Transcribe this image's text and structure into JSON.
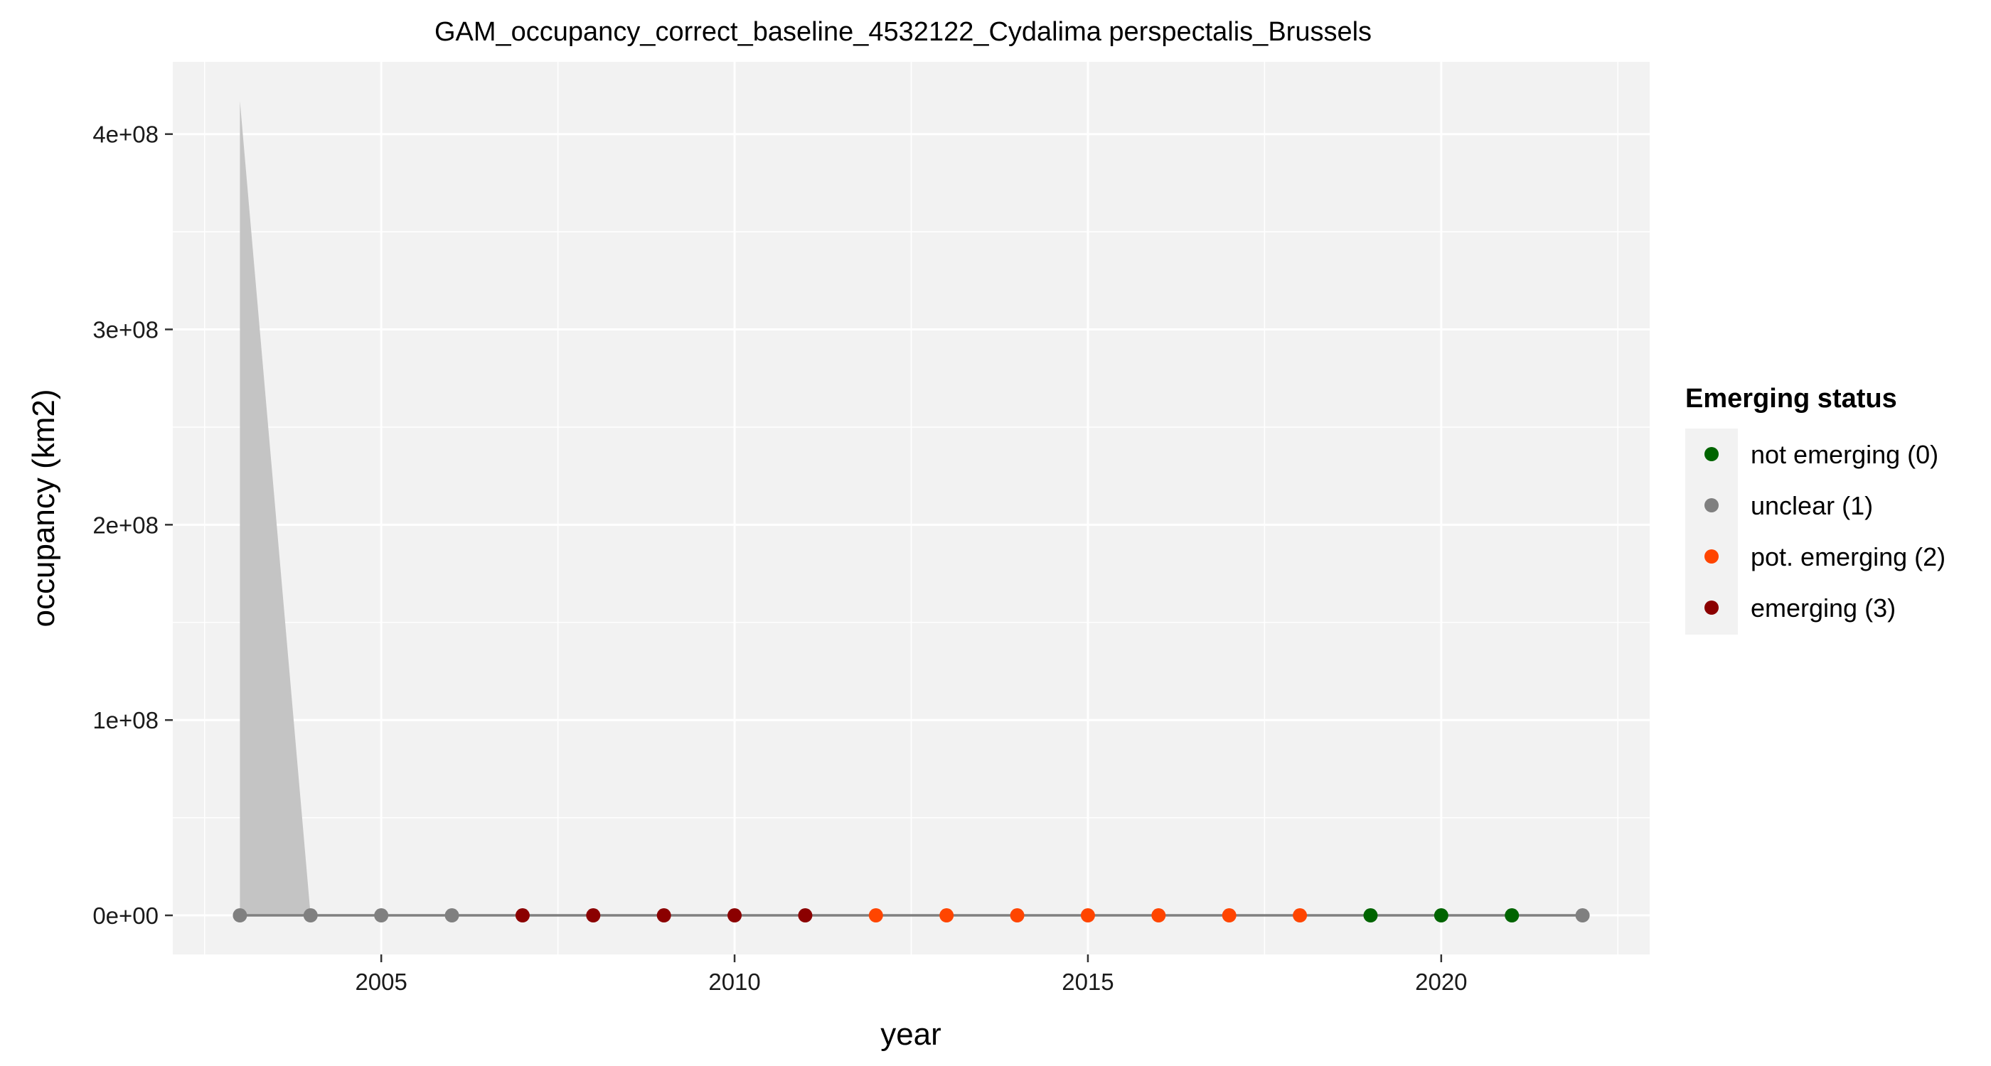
{
  "chart_data": {
    "type": "line",
    "title": "GAM_occupancy_correct_baseline_4532122_Cydalima perspectalis_Brussels",
    "xlabel": "year",
    "ylabel": "occupancy (km2)",
    "xlim": [
      2002.05,
      2022.95
    ],
    "ylim": [
      -20000000,
      437000000
    ],
    "x_ticks": [
      2005,
      2010,
      2015,
      2020
    ],
    "x_tick_labels": [
      "2005",
      "2010",
      "2015",
      "2020"
    ],
    "y_ticks": [
      0,
      100000000,
      200000000,
      300000000,
      400000000
    ],
    "y_tick_labels": [
      "0e+00",
      "1e+08",
      "2e+08",
      "3e+08",
      "4e+08"
    ],
    "grid": true,
    "legend_position": "right",
    "legend": {
      "title": "Emerging status",
      "items": [
        {
          "label": "not emerging (0)",
          "color": "#006400"
        },
        {
          "label": "unclear (1)",
          "color": "#808080"
        },
        {
          "label": "pot. emerging (2)",
          "color": "#FF4500"
        },
        {
          "label": "emerging (3)",
          "color": "#8B0000"
        }
      ]
    },
    "line_color": "#808080",
    "ribbon_color": "#c4c4c4",
    "points": [
      {
        "year": 2003,
        "occupancy": 0,
        "status": 1
      },
      {
        "year": 2004,
        "occupancy": 0,
        "status": 1
      },
      {
        "year": 2005,
        "occupancy": 0,
        "status": 1
      },
      {
        "year": 2006,
        "occupancy": 0,
        "status": 1
      },
      {
        "year": 2007,
        "occupancy": 0,
        "status": 3
      },
      {
        "year": 2008,
        "occupancy": 0,
        "status": 3
      },
      {
        "year": 2009,
        "occupancy": 0,
        "status": 3
      },
      {
        "year": 2010,
        "occupancy": 0,
        "status": 3
      },
      {
        "year": 2011,
        "occupancy": 0,
        "status": 3
      },
      {
        "year": 2012,
        "occupancy": 0,
        "status": 2
      },
      {
        "year": 2013,
        "occupancy": 0,
        "status": 2
      },
      {
        "year": 2014,
        "occupancy": 0,
        "status": 2
      },
      {
        "year": 2015,
        "occupancy": 0,
        "status": 2
      },
      {
        "year": 2016,
        "occupancy": 0,
        "status": 2
      },
      {
        "year": 2017,
        "occupancy": 0,
        "status": 2
      },
      {
        "year": 2018,
        "occupancy": 0,
        "status": 2
      },
      {
        "year": 2019,
        "occupancy": 0,
        "status": 0
      },
      {
        "year": 2020,
        "occupancy": 0,
        "status": 0
      },
      {
        "year": 2021,
        "occupancy": 0,
        "status": 0
      },
      {
        "year": 2022,
        "occupancy": 0,
        "status": 1
      }
    ],
    "ribbon": [
      {
        "year": 2003,
        "lower": 0,
        "upper": 417000000
      },
      {
        "year": 2004,
        "lower": 0,
        "upper": 0
      }
    ]
  }
}
